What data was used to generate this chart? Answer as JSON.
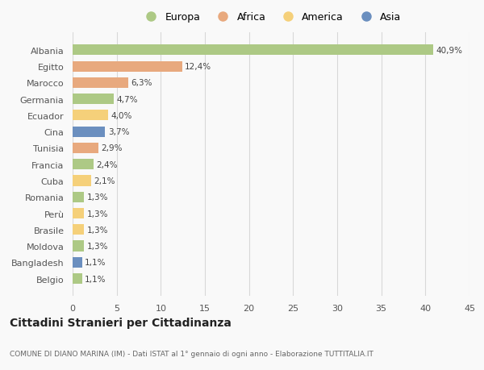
{
  "countries": [
    "Albania",
    "Egitto",
    "Marocco",
    "Germania",
    "Ecuador",
    "Cina",
    "Tunisia",
    "Francia",
    "Cuba",
    "Romania",
    "Perù",
    "Brasile",
    "Moldova",
    "Bangladesh",
    "Belgio"
  ],
  "values": [
    40.9,
    12.4,
    6.3,
    4.7,
    4.0,
    3.7,
    2.9,
    2.4,
    2.1,
    1.3,
    1.3,
    1.3,
    1.3,
    1.1,
    1.1
  ],
  "labels": [
    "40,9%",
    "12,4%",
    "6,3%",
    "4,7%",
    "4,0%",
    "3,7%",
    "2,9%",
    "2,4%",
    "2,1%",
    "1,3%",
    "1,3%",
    "1,3%",
    "1,3%",
    "1,1%",
    "1,1%"
  ],
  "colors": [
    "#adc985",
    "#e8a97e",
    "#e8a97e",
    "#adc985",
    "#f5d07a",
    "#6b8fbf",
    "#e8a97e",
    "#adc985",
    "#f5d07a",
    "#adc985",
    "#f5d07a",
    "#f5d07a",
    "#adc985",
    "#6b8fbf",
    "#adc985"
  ],
  "legend": [
    {
      "label": "Europa",
      "color": "#adc985"
    },
    {
      "label": "Africa",
      "color": "#e8a97e"
    },
    {
      "label": "America",
      "color": "#f5d07a"
    },
    {
      "label": "Asia",
      "color": "#6b8fbf"
    }
  ],
  "xlim": [
    0,
    45
  ],
  "xticks": [
    0,
    5,
    10,
    15,
    20,
    25,
    30,
    35,
    40,
    45
  ],
  "title": "Cittadini Stranieri per Cittadinanza",
  "subtitle": "COMUNE DI DIANO MARINA (IM) - Dati ISTAT al 1° gennaio di ogni anno - Elaborazione TUTTITALIA.IT",
  "background_color": "#f9f9f9",
  "grid_color": "#d8d8d8"
}
